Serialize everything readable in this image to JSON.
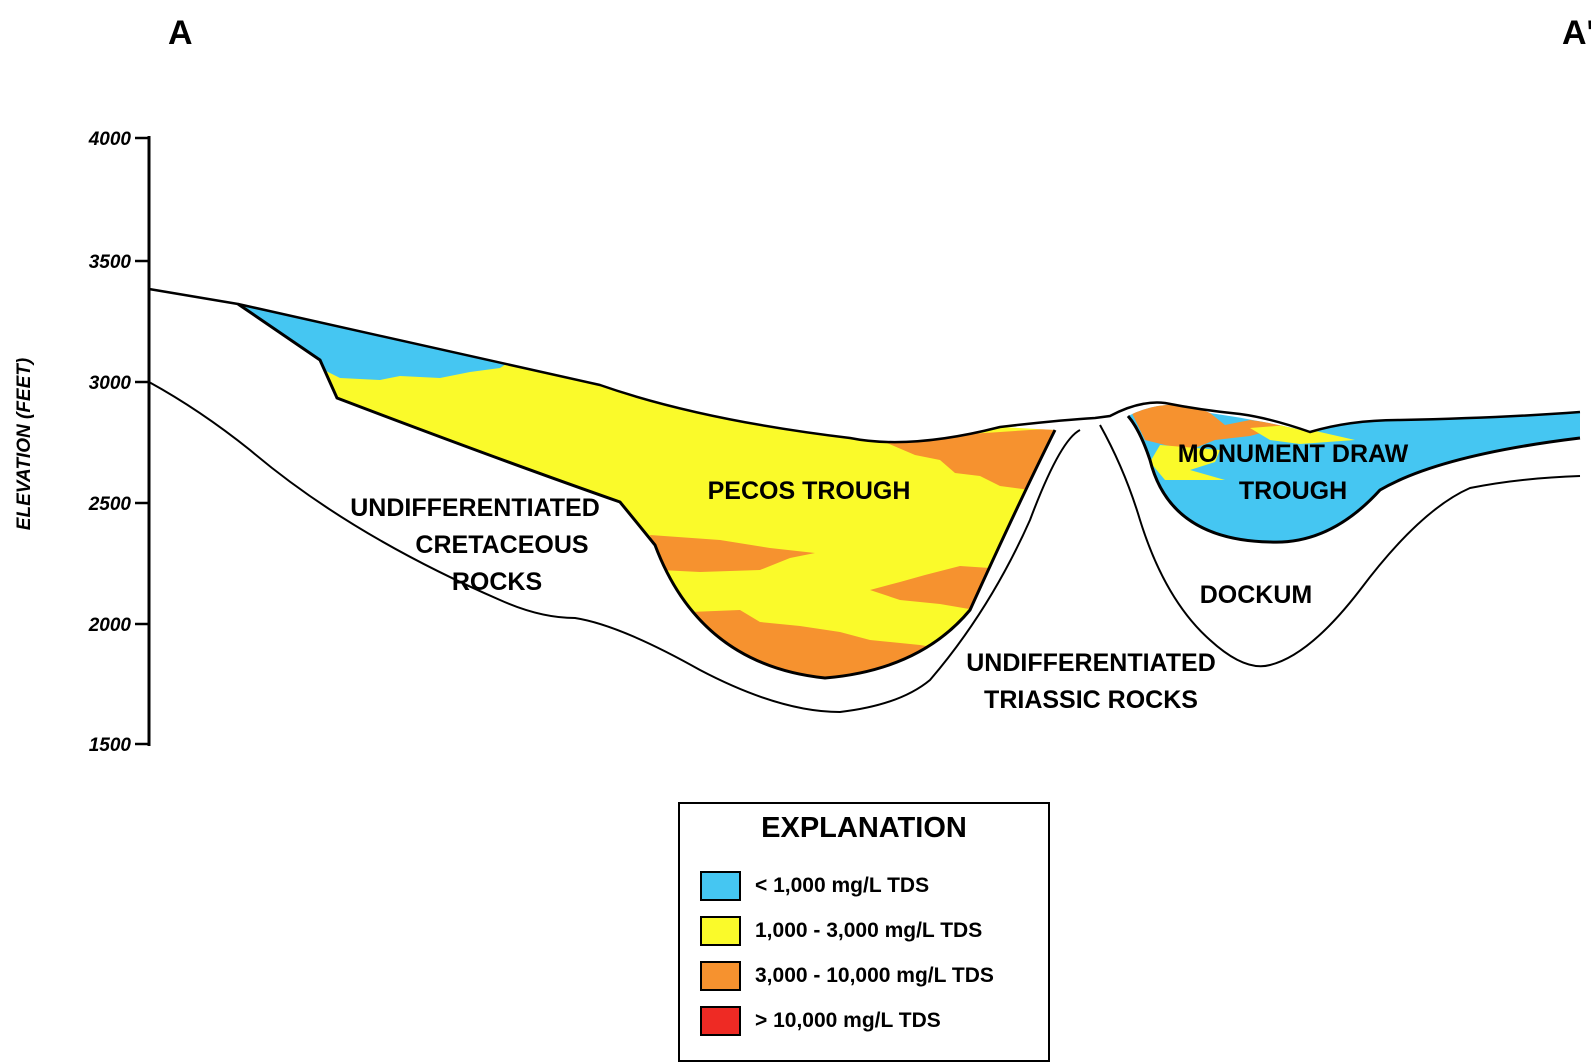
{
  "section": {
    "left_label": "A",
    "right_label": "A'"
  },
  "axis": {
    "label": "ELEVATION (FEET)",
    "ticks": [
      "4000",
      "3500",
      "3000",
      "2500",
      "2000",
      "1500"
    ]
  },
  "units": {
    "cretaceous": [
      "UNDIFFERENTIATED",
      "CRETACEOUS",
      "ROCKS"
    ],
    "pecos": "PECOS TROUGH",
    "monument": [
      "MONUMENT DRAW",
      "TROUGH"
    ],
    "dockum": "DOCKUM",
    "triassic": [
      "UNDIFFERENTIATED",
      "TRIASSIC ROCKS"
    ]
  },
  "legend": {
    "title": "EXPLANATION",
    "items": [
      {
        "label": "< 1,000 mg/L TDS",
        "color": "#45c6f2"
      },
      {
        "label": "1,000  - 3,000 mg/L TDS",
        "color": "#fafa2a"
      },
      {
        "label": "3,000 - 10,000 mg/L TDS",
        "color": "#f6922f"
      },
      {
        "label": "> 10,000 mg/L TDS",
        "color": "#ee2a24"
      }
    ]
  }
}
